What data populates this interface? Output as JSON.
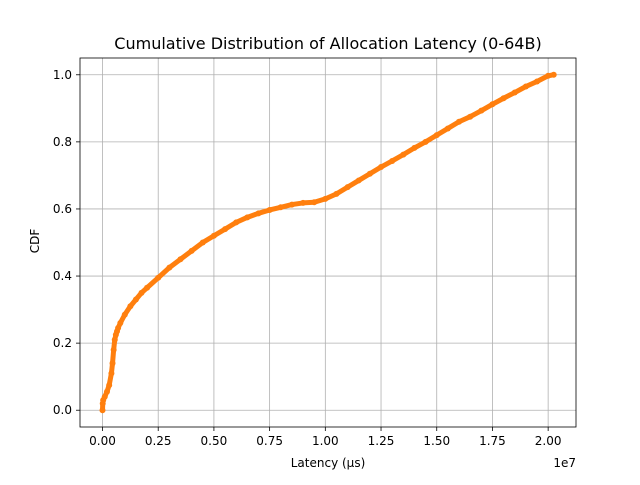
{
  "chart_data": {
    "type": "line",
    "title": "Cumulative Distribution of Allocation Latency (0-64B)",
    "xlabel": "Latency (µs)",
    "ylabel": "CDF",
    "x_offset_label": "1e7",
    "xlim": [
      -1010000,
      21250000
    ],
    "ylim": [
      -0.05,
      1.05
    ],
    "x_ticks": [
      0,
      2500000,
      5000000,
      7500000,
      10000000,
      12500000,
      15000000,
      17500000,
      20000000
    ],
    "x_tick_labels": [
      "0.00",
      "0.25",
      "0.50",
      "0.75",
      "1.00",
      "1.25",
      "1.50",
      "1.75",
      "2.00"
    ],
    "y_ticks": [
      0.0,
      0.2,
      0.4,
      0.6,
      0.8,
      1.0
    ],
    "y_tick_labels": [
      "0.0",
      "0.2",
      "0.4",
      "0.6",
      "0.8",
      "1.0"
    ],
    "grid": true,
    "series_color": "#ff7f0e",
    "series": [
      {
        "x": [
          0,
          10000,
          30000,
          100000,
          200000,
          300000,
          400000,
          450000,
          500000,
          550000,
          600000,
          650000,
          700000,
          800000,
          1000000,
          1250000,
          1500000,
          1750000,
          2000000,
          2500000,
          3000000,
          3500000,
          4000000,
          4500000,
          5000000,
          5500000,
          6000000,
          6500000,
          7000000,
          7500000,
          8000000,
          8500000,
          9000000,
          9500000,
          10000000,
          10500000,
          11000000,
          11500000,
          12000000,
          12500000,
          13000000,
          13500000,
          14000000,
          14500000,
          15000000,
          15500000,
          16000000,
          16500000,
          17000000,
          17500000,
          18000000,
          18500000,
          19000000,
          19500000,
          20000000,
          20250000
        ],
        "y": [
          0.0,
          0.02,
          0.03,
          0.04,
          0.055,
          0.075,
          0.11,
          0.14,
          0.18,
          0.21,
          0.225,
          0.235,
          0.245,
          0.26,
          0.285,
          0.31,
          0.33,
          0.35,
          0.365,
          0.395,
          0.425,
          0.45,
          0.475,
          0.5,
          0.52,
          0.54,
          0.56,
          0.575,
          0.587,
          0.597,
          0.605,
          0.613,
          0.618,
          0.62,
          0.63,
          0.645,
          0.665,
          0.685,
          0.705,
          0.725,
          0.743,
          0.762,
          0.782,
          0.8,
          0.82,
          0.84,
          0.86,
          0.875,
          0.893,
          0.912,
          0.93,
          0.947,
          0.965,
          0.98,
          0.997,
          1.0
        ]
      }
    ]
  }
}
